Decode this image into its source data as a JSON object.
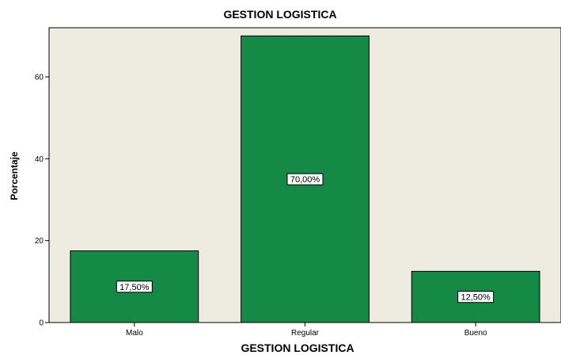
{
  "chart_data": {
    "type": "bar",
    "title": "GESTION LOGISTICA",
    "xlabel": "GESTION LOGISTICA",
    "ylabel": "Porcentaje",
    "categories": [
      "Malo",
      "Regular",
      "Bueno"
    ],
    "values": [
      17.5,
      70.0,
      12.5
    ],
    "data_labels": [
      "17,50%",
      "70,00%",
      "12,50%"
    ],
    "ylim": [
      0,
      72
    ],
    "yticks": [
      0,
      20,
      40,
      60
    ],
    "ytick_labels": [
      "0",
      "20",
      "40",
      "60"
    ],
    "grid": false,
    "bar_color": "#148a46",
    "plot_background": "#eeece1"
  }
}
